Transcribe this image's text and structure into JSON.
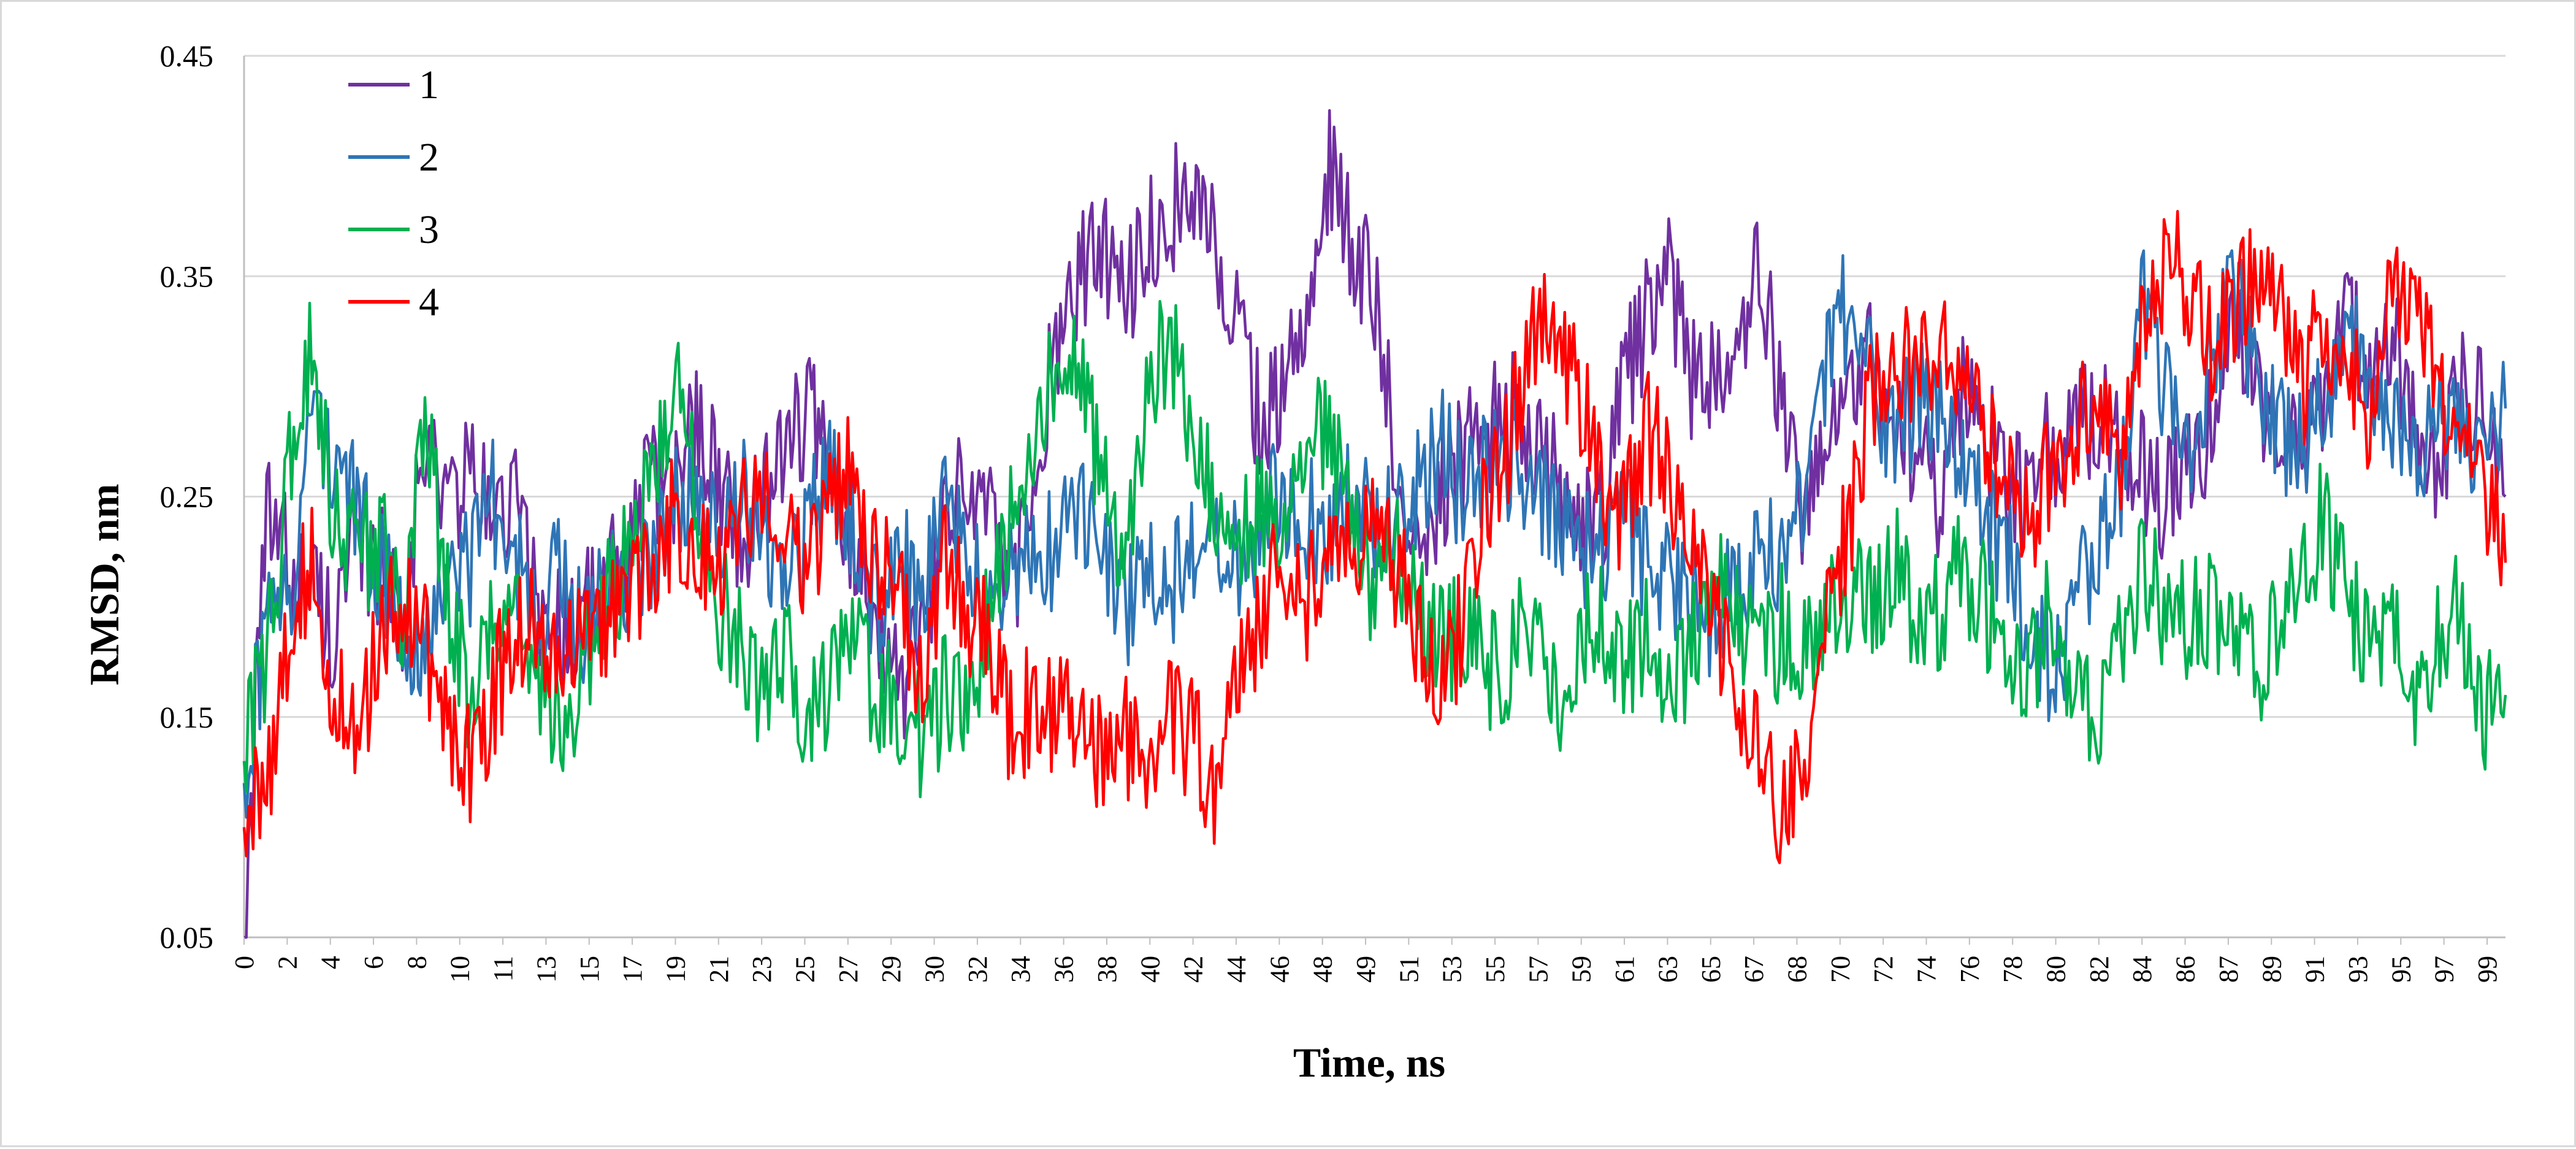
{
  "chart_data": {
    "type": "line",
    "title": "",
    "xlabel": "Time, ns",
    "ylabel": "RMSD, nm",
    "xlim": [
      0,
      100
    ],
    "ylim": [
      0.05,
      0.45
    ],
    "grid": "horizontal",
    "legend_position": "top-left",
    "y_ticks": [
      "0.05",
      "0.15",
      "0.25",
      "0.35",
      "0.45"
    ],
    "y_tick_values": [
      0.05,
      0.15,
      0.25,
      0.35,
      0.45
    ],
    "x_ticks": [
      "0",
      "2",
      "4",
      "6",
      "8",
      "10",
      "11",
      "13",
      "15",
      "17",
      "19",
      "21",
      "23",
      "25",
      "27",
      "29",
      "30",
      "32",
      "34",
      "36",
      "38",
      "40",
      "42",
      "44",
      "46",
      "48",
      "49",
      "51",
      "53",
      "55",
      "57",
      "59",
      "61",
      "63",
      "65",
      "67",
      "68",
      "70",
      "72",
      "74",
      "76",
      "78",
      "80",
      "82",
      "84",
      "86",
      "87",
      "89",
      "91",
      "93",
      "95",
      "97",
      "99"
    ],
    "x": [
      0,
      1,
      2,
      3,
      4,
      5,
      6,
      7,
      8,
      9,
      10,
      11,
      12,
      13,
      14,
      15,
      16,
      17,
      18,
      19,
      20,
      21,
      22,
      23,
      24,
      25,
      26,
      27,
      28,
      29,
      30,
      31,
      32,
      33,
      34,
      35,
      36,
      37,
      38,
      39,
      40,
      41,
      42,
      43,
      44,
      45,
      46,
      47,
      48,
      49,
      50,
      51,
      52,
      53,
      54,
      55,
      56,
      57,
      58,
      59,
      60,
      61,
      62,
      63,
      64,
      65,
      66,
      67,
      68,
      69,
      70,
      71,
      72,
      73,
      74,
      75,
      76,
      77,
      78,
      79,
      80,
      81,
      82,
      83,
      84,
      85,
      86,
      87,
      88,
      89,
      90,
      91,
      92,
      93,
      94,
      95,
      96,
      97,
      98,
      99,
      100
    ],
    "series": [
      {
        "name": "1",
        "color": "#7030a0",
        "values": [
          0.05,
          0.24,
          0.22,
          0.21,
          0.19,
          0.23,
          0.22,
          0.2,
          0.27,
          0.25,
          0.26,
          0.24,
          0.25,
          0.2,
          0.19,
          0.2,
          0.21,
          0.22,
          0.26,
          0.25,
          0.29,
          0.26,
          0.23,
          0.25,
          0.28,
          0.29,
          0.25,
          0.23,
          0.2,
          0.16,
          0.19,
          0.23,
          0.26,
          0.24,
          0.2,
          0.27,
          0.32,
          0.35,
          0.36,
          0.34,
          0.37,
          0.38,
          0.39,
          0.36,
          0.33,
          0.28,
          0.3,
          0.34,
          0.4,
          0.36,
          0.34,
          0.26,
          0.24,
          0.25,
          0.27,
          0.28,
          0.29,
          0.27,
          0.26,
          0.23,
          0.24,
          0.3,
          0.33,
          0.35,
          0.3,
          0.31,
          0.32,
          0.35,
          0.3,
          0.24,
          0.27,
          0.3,
          0.31,
          0.29,
          0.27,
          0.25,
          0.3,
          0.28,
          0.25,
          0.26,
          0.27,
          0.28,
          0.29,
          0.27,
          0.26,
          0.25,
          0.27,
          0.28,
          0.32,
          0.3,
          0.27,
          0.28,
          0.3,
          0.33,
          0.3,
          0.32,
          0.28,
          0.26,
          0.3,
          0.29,
          0.25
        ]
      },
      {
        "name": "2",
        "color": "#2e75b6",
        "values": [
          0.12,
          0.19,
          0.2,
          0.29,
          0.27,
          0.24,
          0.22,
          0.2,
          0.17,
          0.23,
          0.22,
          0.25,
          0.22,
          0.2,
          0.22,
          0.19,
          0.21,
          0.2,
          0.22,
          0.25,
          0.26,
          0.24,
          0.25,
          0.23,
          0.22,
          0.24,
          0.26,
          0.23,
          0.2,
          0.22,
          0.21,
          0.24,
          0.22,
          0.2,
          0.21,
          0.22,
          0.23,
          0.24,
          0.22,
          0.2,
          0.22,
          0.21,
          0.22,
          0.23,
          0.22,
          0.24,
          0.25,
          0.24,
          0.23,
          0.25,
          0.23,
          0.24,
          0.26,
          0.27,
          0.25,
          0.26,
          0.27,
          0.25,
          0.24,
          0.22,
          0.23,
          0.24,
          0.22,
          0.21,
          0.2,
          0.19,
          0.21,
          0.22,
          0.23,
          0.25,
          0.31,
          0.34,
          0.3,
          0.28,
          0.29,
          0.3,
          0.27,
          0.24,
          0.22,
          0.19,
          0.17,
          0.2,
          0.23,
          0.26,
          0.34,
          0.3,
          0.27,
          0.31,
          0.34,
          0.3,
          0.28,
          0.27,
          0.3,
          0.32,
          0.3,
          0.28,
          0.27,
          0.29,
          0.28,
          0.26,
          0.29
        ]
      },
      {
        "name": "3",
        "color": "#00b050",
        "values": [
          0.13,
          0.18,
          0.26,
          0.32,
          0.24,
          0.22,
          0.23,
          0.2,
          0.28,
          0.21,
          0.15,
          0.19,
          0.21,
          0.16,
          0.14,
          0.17,
          0.2,
          0.22,
          0.26,
          0.3,
          0.25,
          0.2,
          0.18,
          0.16,
          0.18,
          0.15,
          0.17,
          0.19,
          0.16,
          0.15,
          0.14,
          0.16,
          0.15,
          0.2,
          0.24,
          0.27,
          0.32,
          0.3,
          0.26,
          0.22,
          0.3,
          0.32,
          0.28,
          0.24,
          0.23,
          0.25,
          0.22,
          0.27,
          0.28,
          0.23,
          0.2,
          0.22,
          0.2,
          0.18,
          0.19,
          0.17,
          0.18,
          0.19,
          0.16,
          0.18,
          0.2,
          0.17,
          0.19,
          0.16,
          0.18,
          0.22,
          0.2,
          0.17,
          0.19,
          0.18,
          0.2,
          0.21,
          0.2,
          0.22,
          0.19,
          0.2,
          0.22,
          0.2,
          0.18,
          0.17,
          0.2,
          0.16,
          0.15,
          0.18,
          0.22,
          0.2,
          0.19,
          0.2,
          0.18,
          0.17,
          0.2,
          0.22,
          0.24,
          0.2,
          0.18,
          0.19,
          0.16,
          0.18,
          0.2,
          0.15,
          0.16
        ]
      },
      {
        "name": "4",
        "color": "#ff0000",
        "values": [
          0.1,
          0.12,
          0.19,
          0.22,
          0.16,
          0.13,
          0.19,
          0.21,
          0.18,
          0.15,
          0.13,
          0.16,
          0.19,
          0.2,
          0.17,
          0.2,
          0.19,
          0.21,
          0.22,
          0.24,
          0.23,
          0.22,
          0.24,
          0.26,
          0.24,
          0.22,
          0.25,
          0.26,
          0.22,
          0.2,
          0.17,
          0.22,
          0.2,
          0.18,
          0.14,
          0.16,
          0.15,
          0.14,
          0.13,
          0.14,
          0.13,
          0.15,
          0.14,
          0.12,
          0.17,
          0.2,
          0.22,
          0.2,
          0.23,
          0.22,
          0.23,
          0.22,
          0.19,
          0.16,
          0.2,
          0.25,
          0.28,
          0.33,
          0.32,
          0.3,
          0.26,
          0.24,
          0.28,
          0.26,
          0.22,
          0.2,
          0.15,
          0.14,
          0.11,
          0.13,
          0.2,
          0.24,
          0.3,
          0.32,
          0.3,
          0.33,
          0.31,
          0.28,
          0.25,
          0.24,
          0.26,
          0.28,
          0.3,
          0.27,
          0.33,
          0.36,
          0.34,
          0.32,
          0.33,
          0.35,
          0.34,
          0.3,
          0.33,
          0.31,
          0.28,
          0.34,
          0.35,
          0.3,
          0.27,
          0.26,
          0.22
        ]
      }
    ]
  }
}
